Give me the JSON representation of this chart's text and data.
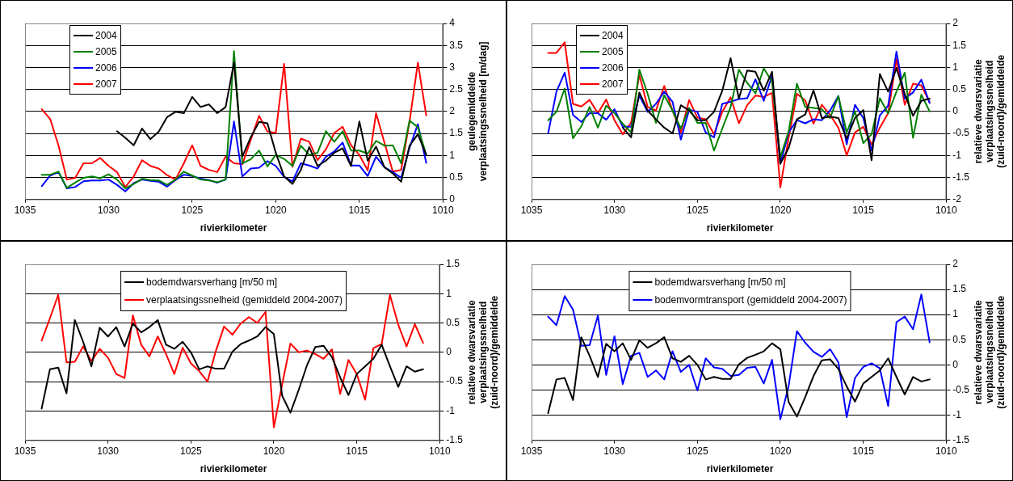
{
  "chart_data": [
    {
      "type": "line",
      "xlabel": "rivierkilometer",
      "ylabel": "geulegemiddelde verplaatsingssnelheid [m/dag]",
      "x": [
        1034,
        1033.5,
        1033,
        1032.5,
        1032,
        1031.5,
        1031,
        1030.5,
        1030,
        1029.5,
        1029,
        1028.5,
        1028,
        1027.5,
        1027,
        1026.5,
        1026,
        1025.5,
        1025,
        1024.5,
        1024,
        1023.5,
        1023,
        1022.5,
        1022,
        1021.5,
        1021,
        1020.5,
        1020,
        1019.5,
        1019,
        1018.5,
        1018,
        1017.5,
        1017,
        1016.5,
        1016,
        1015.5,
        1015,
        1014.5,
        1014,
        1013.5,
        1013,
        1012.5,
        1012,
        1011.5,
        1011
      ],
      "xlim": [
        1035,
        1010
      ],
      "xticks": [
        1035,
        1030,
        1025,
        1020,
        1015,
        1010
      ],
      "ylim": [
        0,
        4
      ],
      "yticks": [
        0,
        0.5,
        1,
        1.5,
        2,
        2.5,
        3,
        3.5,
        4
      ],
      "grid": "y",
      "legend": "top left",
      "marker": "none",
      "series": [
        {
          "name": "2004",
          "color": "#000000",
          "values": [
            null,
            null,
            null,
            null,
            null,
            null,
            null,
            null,
            null,
            1.55,
            1.4,
            1.23,
            1.61,
            1.37,
            1.54,
            1.87,
            1.99,
            1.96,
            2.33,
            2.1,
            2.16,
            1.96,
            2.1,
            3.11,
            0.97,
            1.41,
            1.76,
            1.73,
            1.06,
            0.52,
            0.35,
            0.67,
            1.19,
            0.76,
            0.88,
            1.06,
            1.16,
            0.76,
            1.77,
            0.88,
            1.2,
            0.73,
            0.59,
            0.4,
            1.22,
            1.48,
            1.01
          ]
        },
        {
          "name": "2005",
          "color": "#008000",
          "values": [
            0.56,
            0.56,
            0.63,
            0.26,
            0.38,
            0.49,
            0.52,
            0.48,
            0.57,
            0.45,
            0.25,
            0.35,
            0.47,
            0.44,
            0.43,
            0.33,
            0.45,
            0.63,
            0.54,
            0.45,
            0.43,
            0.39,
            0.45,
            3.37,
            0.82,
            0.91,
            1.11,
            0.75,
            1.01,
            0.92,
            0.76,
            1.22,
            1.01,
            1.06,
            1.55,
            1.31,
            1.55,
            1.11,
            1.11,
            1.04,
            1.33,
            1.22,
            1.23,
            0.82,
            1.79,
            1.64,
            1.01
          ]
        },
        {
          "name": "2006",
          "color": "#0000ff",
          "values": [
            0.3,
            0.54,
            0.62,
            0.25,
            0.28,
            0.41,
            0.43,
            0.43,
            0.45,
            0.33,
            0.18,
            0.37,
            0.45,
            0.42,
            0.4,
            0.29,
            0.44,
            0.56,
            0.53,
            0.47,
            0.44,
            0.38,
            0.45,
            1.77,
            0.52,
            0.7,
            0.72,
            0.87,
            0.76,
            0.51,
            0.41,
            0.82,
            0.77,
            0.7,
            0.97,
            1.09,
            1.29,
            0.77,
            0.77,
            0.53,
            0.97,
            0.73,
            0.62,
            0.49,
            1.17,
            1.71,
            0.83
          ]
        },
        {
          "name": "2007",
          "color": "#ff0000",
          "values": [
            2.05,
            1.83,
            1.23,
            0.45,
            0.49,
            0.82,
            0.82,
            0.94,
            0.76,
            0.62,
            0.28,
            0.52,
            0.89,
            0.76,
            0.7,
            0.55,
            0.45,
            0.82,
            1.23,
            0.76,
            0.67,
            0.62,
            0.97,
            0.82,
            0.8,
            1.35,
            1.9,
            1.54,
            1.51,
            3.08,
            0.74,
            1.38,
            1.31,
            0.89,
            1.14,
            1.51,
            1.65,
            1.23,
            1.01,
            0.66,
            1.96,
            1.29,
            0.63,
            0.67,
            1.76,
            3.11,
            1.91
          ]
        }
      ]
    },
    {
      "type": "line",
      "xlabel": "rivierkilometer",
      "ylabel": "relatieve dwarsvariatie verplaatsingssnelheid (zuid-noord)/gemiddelde",
      "x": [
        1034,
        1033.5,
        1033,
        1032.5,
        1032,
        1031.5,
        1031,
        1030.5,
        1030,
        1029.5,
        1029,
        1028.5,
        1028,
        1027.5,
        1027,
        1026.5,
        1026,
        1025.5,
        1025,
        1024.5,
        1024,
        1023.5,
        1023,
        1022.5,
        1022,
        1021.5,
        1021,
        1020.5,
        1020,
        1019.5,
        1019,
        1018.5,
        1018,
        1017.5,
        1017,
        1016.5,
        1016,
        1015.5,
        1015,
        1014.5,
        1014,
        1013.5,
        1013,
        1012.5,
        1012,
        1011.5,
        1011
      ],
      "xlim": [
        1035,
        1010
      ],
      "xticks": [
        1035,
        1030,
        1025,
        1020,
        1015,
        1010
      ],
      "ylim": [
        -2,
        2
      ],
      "yticks": [
        -2,
        -1.5,
        -1,
        -0.5,
        0,
        0.5,
        1,
        1.5,
        2
      ],
      "grid": "y",
      "legend": "top left",
      "marker": "none",
      "series": [
        {
          "name": "2004",
          "color": "#000000",
          "values": [
            null,
            null,
            null,
            null,
            null,
            null,
            null,
            null,
            null,
            -0.37,
            -0.59,
            0.43,
            0.02,
            -0.18,
            -0.37,
            -0.5,
            0.14,
            0.02,
            -0.2,
            -0.2,
            -0.01,
            0.47,
            1.21,
            0.29,
            0.93,
            0.9,
            0.47,
            0.9,
            -1.19,
            -0.83,
            -0.18,
            -0.07,
            0.48,
            -0.15,
            -0.12,
            -0.15,
            -0.62,
            -0.15,
            0.03,
            -1.11,
            0.85,
            0.45,
            0.98,
            0.4,
            -0.1,
            0.24,
            0.29
          ]
        },
        {
          "name": "2005",
          "color": "#008000",
          "values": [
            -0.2,
            -0.01,
            0.52,
            -0.61,
            -0.34,
            0.1,
            -0.37,
            0.13,
            -0.04,
            -0.28,
            -0.48,
            0.95,
            0.4,
            -0.26,
            0.37,
            0.02,
            -0.39,
            0.08,
            -0.26,
            -0.26,
            -0.89,
            -0.39,
            0.1,
            0.95,
            0.65,
            0.41,
            0.98,
            0.67,
            -1.05,
            -0.45,
            0.63,
            0.1,
            0.08,
            0.05,
            -0.15,
            0.35,
            -0.48,
            0.0,
            -0.72,
            -0.52,
            0.3,
            -0.05,
            0.45,
            0.88,
            -0.6,
            0.38,
            0.0
          ]
        },
        {
          "name": "2006",
          "color": "#0000ff",
          "values": [
            -0.5,
            0.45,
            0.88,
            -0.08,
            -0.24,
            -0.04,
            -0.04,
            -0.19,
            0.05,
            -0.35,
            -0.35,
            0.36,
            -0.01,
            0.17,
            0.45,
            0.22,
            -0.64,
            0.04,
            -0.01,
            -0.48,
            -0.59,
            0.17,
            0.22,
            0.28,
            0.3,
            0.73,
            0.24,
            0.81,
            -1.19,
            -0.48,
            -0.2,
            -0.27,
            -0.18,
            -0.2,
            0.02,
            0.35,
            -0.75,
            0.15,
            -0.15,
            -0.89,
            -0.09,
            0.13,
            1.36,
            0.29,
            0.43,
            0.72,
            0.19
          ]
        },
        {
          "name": "2007",
          "color": "#ff0000",
          "values": [
            1.33,
            1.33,
            1.57,
            0.17,
            0.11,
            0.26,
            -0.04,
            0.27,
            -0.2,
            -0.52,
            -0.26,
            0.83,
            0.1,
            0.02,
            0.58,
            0.02,
            -0.48,
            0.26,
            -0.14,
            -0.18,
            -0.52,
            -0.01,
            0.32,
            -0.27,
            0.14,
            0.36,
            0.33,
            0.42,
            -1.73,
            -0.6,
            0.4,
            0.25,
            -0.28,
            0.15,
            -0.08,
            -0.37,
            -1.0,
            -0.48,
            -0.35,
            -0.75,
            -0.37,
            -0.04,
            1.19,
            0.15,
            0.63,
            0.59,
            0.21
          ]
        }
      ]
    },
    {
      "type": "line",
      "xlabel": "rivierkilometer",
      "ylabel": "relatieve dwarsvariatie verplaatsingssnelheid (zuid-noord)/gemiddelde",
      "x": [
        1034,
        1033.5,
        1033,
        1032.5,
        1032,
        1031.5,
        1031,
        1030.5,
        1030,
        1029.5,
        1029,
        1028.5,
        1028,
        1027.5,
        1027,
        1026.5,
        1026,
        1025.5,
        1025,
        1024.5,
        1024,
        1023.5,
        1023,
        1022.5,
        1022,
        1021.5,
        1021,
        1020.5,
        1020,
        1019.5,
        1019,
        1018.5,
        1018,
        1017.5,
        1017,
        1016.5,
        1016,
        1015.5,
        1015,
        1014.5,
        1014,
        1013.5,
        1013,
        1012.5,
        1012,
        1011.5,
        1011
      ],
      "xlim": [
        1035,
        1010
      ],
      "xticks": [
        1035,
        1030,
        1025,
        1020,
        1015,
        1010
      ],
      "ylim": [
        -1.5,
        1.5
      ],
      "yticks": [
        -1.5,
        -1,
        -0.5,
        0,
        0.5,
        1,
        1.5
      ],
      "grid": "y",
      "legend": "top",
      "marker": "none",
      "series": [
        {
          "name": "bodemdwarsverhang [m/50 m]",
          "color": "#000000",
          "values": [
            -0.96,
            -0.29,
            -0.26,
            -0.7,
            0.55,
            0.18,
            -0.24,
            0.42,
            0.27,
            0.43,
            0.1,
            0.49,
            0.34,
            0.43,
            0.55,
            0.13,
            0.06,
            0.18,
            0.0,
            -0.29,
            -0.24,
            -0.28,
            -0.28,
            0.01,
            0.14,
            0.2,
            0.27,
            0.43,
            0.31,
            -0.74,
            -1.03,
            -0.64,
            -0.22,
            0.09,
            0.11,
            -0.08,
            -0.43,
            -0.73,
            -0.37,
            -0.24,
            -0.11,
            0.13,
            -0.24,
            -0.59,
            -0.24,
            -0.33,
            -0.29
          ]
        },
        {
          "name": "verplaatsingssnelheid (gemiddeld 2004-2007)",
          "color": "#ff0000",
          "values": [
            0.2,
            0.58,
            0.98,
            -0.17,
            -0.16,
            0.1,
            -0.15,
            0.06,
            -0.09,
            -0.37,
            -0.44,
            0.63,
            0.13,
            -0.07,
            0.27,
            -0.03,
            -0.37,
            0.08,
            -0.19,
            -0.32,
            -0.5,
            0.02,
            0.44,
            0.3,
            0.49,
            0.6,
            0.5,
            0.69,
            -1.28,
            -0.55,
            0.15,
            0.0,
            0.03,
            -0.03,
            -0.11,
            0.05,
            -0.71,
            -0.13,
            -0.37,
            -0.81,
            0.07,
            0.14,
            0.98,
            0.47,
            0.1,
            0.48,
            0.16
          ]
        }
      ]
    },
    {
      "type": "line",
      "xlabel": "rivierkilometer",
      "ylabel": "relatieve dwarsvariatie verplaatsingssnelheid (zuid-noord)/gemiddelde",
      "x": [
        1034,
        1033.5,
        1033,
        1032.5,
        1032,
        1031.5,
        1031,
        1030.5,
        1030,
        1029.5,
        1029,
        1028.5,
        1028,
        1027.5,
        1027,
        1026.5,
        1026,
        1025.5,
        1025,
        1024.5,
        1024,
        1023.5,
        1023,
        1022.5,
        1022,
        1021.5,
        1021,
        1020.5,
        1020,
        1019.5,
        1019,
        1018.5,
        1018,
        1017.5,
        1017,
        1016.5,
        1016,
        1015.5,
        1015,
        1014.5,
        1014,
        1013.5,
        1013,
        1012.5,
        1012,
        1011.5,
        1011
      ],
      "xlim": [
        1035,
        1010
      ],
      "xticks": [
        1035,
        1030,
        1025,
        1020,
        1015,
        1010
      ],
      "ylim": [
        -1.5,
        2
      ],
      "yticks": [
        -1.5,
        -1,
        -0.5,
        0,
        0.5,
        1,
        1.5,
        2
      ],
      "grid": "y",
      "legend": "top",
      "marker": "none",
      "series": [
        {
          "name": "bodemdwarsverhang [m/50 m]",
          "color": "#000000",
          "values": [
            -0.96,
            -0.29,
            -0.26,
            -0.7,
            0.55,
            0.18,
            -0.24,
            0.42,
            0.27,
            0.43,
            0.1,
            0.49,
            0.34,
            0.43,
            0.55,
            0.13,
            0.06,
            0.18,
            0.0,
            -0.29,
            -0.24,
            -0.28,
            -0.28,
            0.01,
            0.14,
            0.2,
            0.27,
            0.43,
            0.31,
            -0.74,
            -1.03,
            -0.64,
            -0.22,
            0.09,
            0.11,
            -0.08,
            -0.43,
            -0.73,
            -0.37,
            -0.24,
            -0.11,
            0.13,
            -0.24,
            -0.59,
            -0.24,
            -0.33,
            -0.29
          ]
        },
        {
          "name": "bodemvormtransport (gemiddeld 2004-2007)",
          "color": "#0000ff",
          "values": [
            0.96,
            0.79,
            1.37,
            1.1,
            0.38,
            0.39,
            0.98,
            -0.2,
            0.57,
            -0.38,
            0.18,
            0.24,
            -0.24,
            -0.11,
            -0.29,
            0.27,
            -0.14,
            0.0,
            -0.51,
            0.13,
            -0.05,
            -0.08,
            -0.22,
            -0.2,
            -0.06,
            -0.04,
            -0.37,
            0.1,
            -1.08,
            -0.42,
            0.67,
            0.44,
            0.26,
            0.16,
            0.31,
            0.05,
            -1.04,
            -0.26,
            -0.04,
            0.03,
            -0.07,
            -0.82,
            0.85,
            0.96,
            0.71,
            1.4,
            0.45
          ]
        }
      ]
    }
  ]
}
